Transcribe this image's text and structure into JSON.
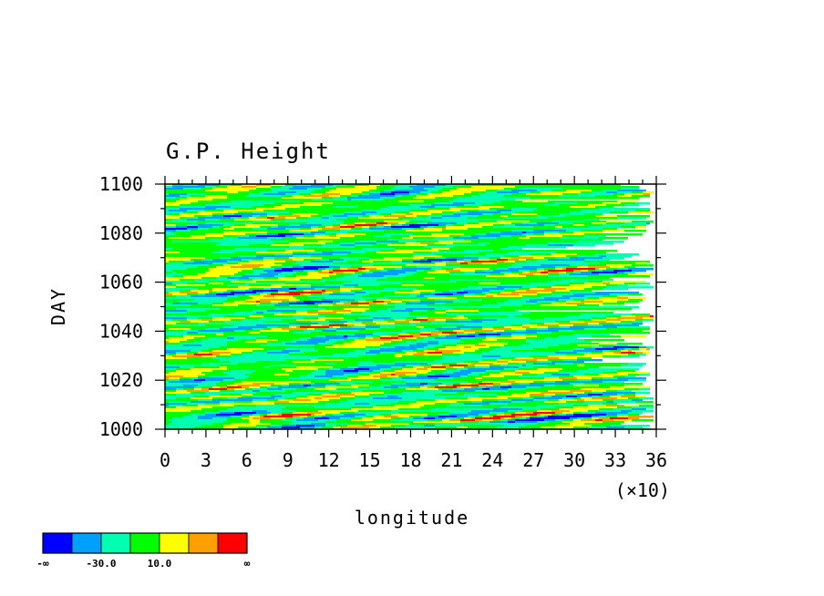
{
  "chart_data": {
    "type": "heatmap",
    "title": "G.P. Height",
    "xlabel": "longitude",
    "ylabel": "DAY",
    "x_multiplier_label": "(×10)",
    "xlim": [
      0,
      36
    ],
    "ylim": [
      1000,
      1100
    ],
    "x_ticks": [
      "0",
      "3",
      "6",
      "9",
      "12",
      "15",
      "18",
      "21",
      "24",
      "27",
      "30",
      "33",
      "36"
    ],
    "y_ticks": [
      "1000",
      "1020",
      "1040",
      "1060",
      "1080",
      "1100"
    ],
    "colorbar": {
      "colors": [
        "#0000ff",
        "#00a0ff",
        "#00ffb0",
        "#00ff00",
        "#ffff00",
        "#ffa000",
        "#ff0000"
      ],
      "labels": [
        "-∞",
        "-30.0",
        "10.0",
        "∞"
      ]
    }
  }
}
